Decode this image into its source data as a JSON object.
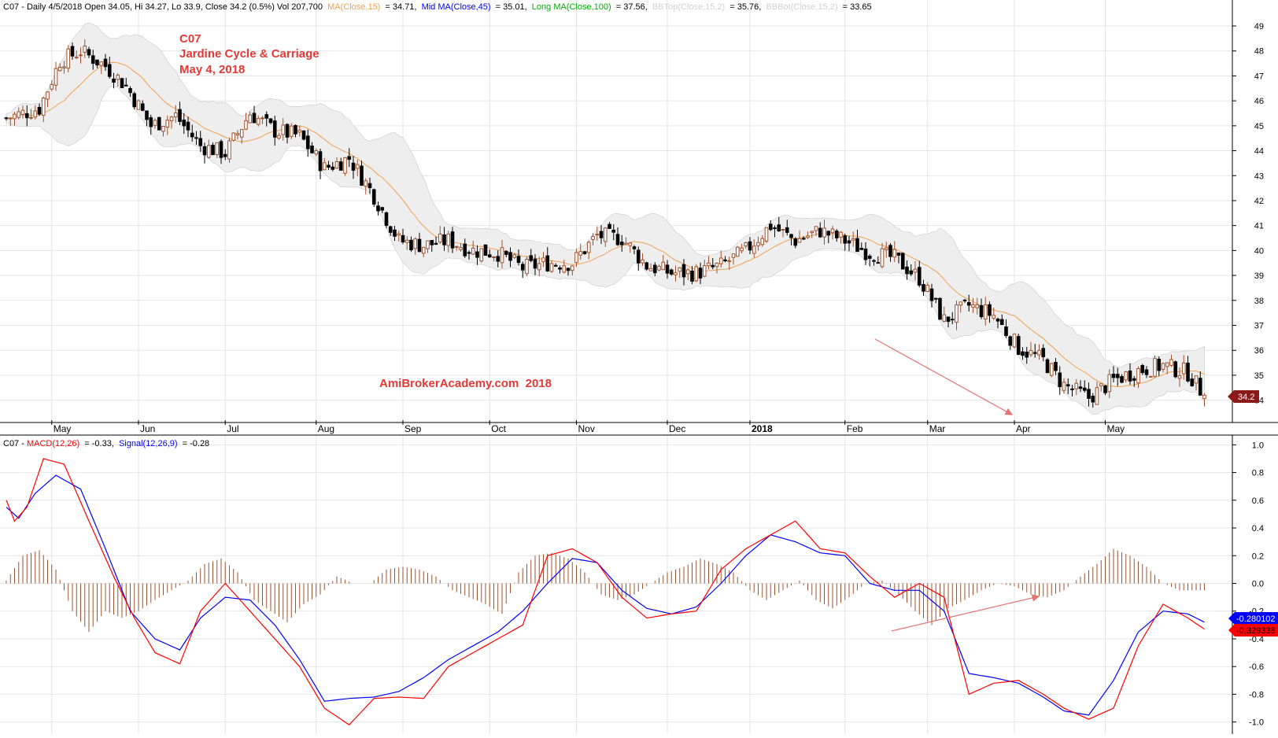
{
  "header": {
    "prefix": "C07 - Daily 4/5/2018 Open 34.05, Hi 34.27, Lo 33.9, Close 34.2 (0.5%) Vol 207,700",
    "ma15_label": "MA(Close,15)",
    "ma15_value": "= 34.71,",
    "mid_label": "Mid MA(Close,45)",
    "mid_value": "= 35.01,",
    "long_label": "Long MA(Close,100)",
    "long_value": "= 37.56,",
    "bbtop_label": "BBTop(Close,15,2)",
    "bbtop_value": "= 35.76,",
    "bbbot_label": "BBBot(Close,15,2)",
    "bbbot_value": "= 33.65"
  },
  "annotation": {
    "line1": "C07",
    "line2": "Jardine Cycle & Carriage",
    "line3": "May 4, 2018",
    "watermark": "AmiBrokerAcademy.com  2018"
  },
  "price_tag": "34.2",
  "macd_header": {
    "prefix": "C07 - ",
    "macd_label": "MACD(12,26)",
    "macd_value": "= -0.33,",
    "signal_label": "Signal(12,26,9)",
    "signal_value": "= -0.28"
  },
  "macd_tags": {
    "signal": "-0.280102",
    "macd": "-0.329338"
  },
  "colors": {
    "up": "#a0522d",
    "down": "#000000",
    "ma15": "#f0a050",
    "band": "#eeeeee",
    "macd": "#ff0000",
    "signal": "#0000ff",
    "hist": "#a0522d",
    "annotation": "#e53935",
    "arrow": "#e57373"
  },
  "chart_data": [
    {
      "type": "candlestick",
      "title": "C07 Jardine Cycle & Carriage daily",
      "y_ticks": [
        34,
        35,
        36,
        37,
        38,
        39,
        40,
        41,
        42,
        43,
        44,
        45,
        46,
        47,
        48,
        49
      ],
      "ylim": [
        33.2,
        49.6
      ],
      "x_labels": [
        {
          "label": "May",
          "bold": false
        },
        {
          "label": "Jun",
          "bold": false
        },
        {
          "label": "Jul",
          "bold": false
        },
        {
          "label": "Aug",
          "bold": false
        },
        {
          "label": "Sep",
          "bold": false
        },
        {
          "label": "Oct",
          "bold": false
        },
        {
          "label": "Nov",
          "bold": false
        },
        {
          "label": "Dec",
          "bold": false
        },
        {
          "label": "2018",
          "bold": true
        },
        {
          "label": "Feb",
          "bold": false
        },
        {
          "label": "Mar",
          "bold": false
        },
        {
          "label": "Apr",
          "bold": false
        },
        {
          "label": "May",
          "bold": false
        }
      ],
      "close_path": [
        [
          0,
          45.3
        ],
        [
          8,
          45.7
        ],
        [
          13,
          47.6
        ],
        [
          18,
          48.0
        ],
        [
          24,
          47.4
        ],
        [
          29,
          46.6
        ],
        [
          35,
          45.0
        ],
        [
          41,
          45.4
        ],
        [
          47,
          44.2
        ],
        [
          53,
          43.9
        ],
        [
          59,
          45.5
        ],
        [
          65,
          44.8
        ],
        [
          71,
          44.6
        ],
        [
          77,
          43.3
        ],
        [
          83,
          43.7
        ],
        [
          89,
          42.2
        ],
        [
          95,
          40.4
        ],
        [
          101,
          40.2
        ],
        [
          107,
          40.4
        ],
        [
          113,
          40.0
        ],
        [
          119,
          39.9
        ],
        [
          125,
          39.3
        ],
        [
          131,
          39.5
        ],
        [
          137,
          39.5
        ],
        [
          143,
          40.6
        ],
        [
          149,
          40.5
        ],
        [
          155,
          39.4
        ],
        [
          161,
          39.1
        ],
        [
          167,
          39.1
        ],
        [
          173,
          39.4
        ],
        [
          179,
          40.0
        ],
        [
          185,
          41.0
        ],
        [
          191,
          40.4
        ],
        [
          197,
          40.8
        ],
        [
          203,
          40.4
        ],
        [
          209,
          39.9
        ],
        [
          215,
          39.7
        ],
        [
          221,
          38.9
        ],
        [
          227,
          37.2
        ],
        [
          233,
          37.8
        ],
        [
          239,
          37.4
        ],
        [
          245,
          36.1
        ],
        [
          251,
          35.6
        ],
        [
          256,
          34.6
        ],
        [
          262,
          34.1
        ],
        [
          268,
          34.8
        ],
        [
          274,
          35.2
        ],
        [
          280,
          35.4
        ],
        [
          286,
          35.1
        ],
        [
          290,
          34.2
        ]
      ],
      "last_close": 34.2
    },
    {
      "type": "line",
      "title": "MACD(12,26) / Signal(12,26,9)",
      "y_ticks": [
        1.0,
        0.8,
        0.6,
        0.4,
        0.2,
        0.0,
        -0.2,
        -0.4,
        -0.6,
        -0.8,
        -1.0
      ],
      "ylim": [
        -1.07,
        1.07
      ],
      "series": [
        {
          "name": "MACD(12,26)",
          "points": [
            [
              0,
              0.6
            ],
            [
              2,
              0.45
            ],
            [
              5,
              0.55
            ],
            [
              9,
              0.9
            ],
            [
              14,
              0.86
            ],
            [
              20,
              0.45
            ],
            [
              26,
              0.05
            ],
            [
              31,
              -0.25
            ],
            [
              36,
              -0.5
            ],
            [
              42,
              -0.58
            ],
            [
              47,
              -0.2
            ],
            [
              53,
              0.0
            ],
            [
              59,
              -0.2
            ],
            [
              65,
              -0.4
            ],
            [
              71,
              -0.6
            ],
            [
              77,
              -0.9
            ],
            [
              83,
              -1.02
            ],
            [
              89,
              -0.83
            ],
            [
              95,
              -0.82
            ],
            [
              101,
              -0.83
            ],
            [
              107,
              -0.6
            ],
            [
              113,
              -0.5
            ],
            [
              119,
              -0.4
            ],
            [
              125,
              -0.3
            ],
            [
              131,
              0.2
            ],
            [
              137,
              0.25
            ],
            [
              143,
              0.15
            ],
            [
              149,
              -0.1
            ],
            [
              155,
              -0.25
            ],
            [
              161,
              -0.22
            ],
            [
              167,
              -0.2
            ],
            [
              173,
              0.1
            ],
            [
              179,
              0.25
            ],
            [
              185,
              0.35
            ],
            [
              191,
              0.45
            ],
            [
              197,
              0.25
            ],
            [
              203,
              0.22
            ],
            [
              209,
              0.05
            ],
            [
              215,
              -0.1
            ],
            [
              221,
              0.0
            ],
            [
              227,
              -0.1
            ],
            [
              233,
              -0.8
            ],
            [
              239,
              -0.72
            ],
            [
              245,
              -0.7
            ],
            [
              251,
              -0.8
            ],
            [
              256,
              -0.9
            ],
            [
              262,
              -0.98
            ],
            [
              268,
              -0.9
            ],
            [
              274,
              -0.45
            ],
            [
              280,
              -0.15
            ],
            [
              286,
              -0.25
            ],
            [
              290,
              -0.33
            ]
          ]
        },
        {
          "name": "Signal(12,26,9)",
          "points": [
            [
              0,
              0.55
            ],
            [
              3,
              0.47
            ],
            [
              7,
              0.65
            ],
            [
              12,
              0.78
            ],
            [
              18,
              0.68
            ],
            [
              24,
              0.25
            ],
            [
              30,
              -0.2
            ],
            [
              36,
              -0.4
            ],
            [
              42,
              -0.48
            ],
            [
              47,
              -0.25
            ],
            [
              53,
              -0.1
            ],
            [
              59,
              -0.12
            ],
            [
              65,
              -0.3
            ],
            [
              71,
              -0.55
            ],
            [
              77,
              -0.85
            ],
            [
              83,
              -0.83
            ],
            [
              89,
              -0.82
            ],
            [
              95,
              -0.78
            ],
            [
              101,
              -0.68
            ],
            [
              107,
              -0.55
            ],
            [
              113,
              -0.45
            ],
            [
              119,
              -0.35
            ],
            [
              125,
              -0.2
            ],
            [
              131,
              0.0
            ],
            [
              137,
              0.18
            ],
            [
              143,
              0.15
            ],
            [
              149,
              -0.05
            ],
            [
              155,
              -0.18
            ],
            [
              161,
              -0.22
            ],
            [
              167,
              -0.17
            ],
            [
              173,
              0.0
            ],
            [
              179,
              0.2
            ],
            [
              185,
              0.35
            ],
            [
              191,
              0.3
            ],
            [
              197,
              0.22
            ],
            [
              203,
              0.2
            ],
            [
              209,
              0.0
            ],
            [
              215,
              -0.05
            ],
            [
              221,
              -0.05
            ],
            [
              227,
              -0.2
            ],
            [
              233,
              -0.65
            ],
            [
              239,
              -0.68
            ],
            [
              245,
              -0.72
            ],
            [
              251,
              -0.82
            ],
            [
              256,
              -0.92
            ],
            [
              262,
              -0.95
            ],
            [
              268,
              -0.7
            ],
            [
              274,
              -0.35
            ],
            [
              280,
              -0.2
            ],
            [
              286,
              -0.22
            ],
            [
              290,
              -0.28
            ]
          ]
        }
      ],
      "histogram_envelope": [
        [
          0,
          0.02
        ],
        [
          4,
          0.2
        ],
        [
          8,
          0.24
        ],
        [
          12,
          0.1
        ],
        [
          16,
          -0.2
        ],
        [
          20,
          -0.35
        ],
        [
          24,
          -0.2
        ],
        [
          28,
          -0.25
        ],
        [
          32,
          -0.2
        ],
        [
          36,
          -0.12
        ],
        [
          40,
          -0.05
        ],
        [
          44,
          0.02
        ],
        [
          48,
          0.14
        ],
        [
          52,
          0.18
        ],
        [
          56,
          0.08
        ],
        [
          60,
          -0.12
        ],
        [
          64,
          -0.2
        ],
        [
          68,
          -0.28
        ],
        [
          72,
          -0.15
        ],
        [
          76,
          -0.08
        ],
        [
          80,
          0.05
        ],
        [
          84,
          0.0
        ],
        [
          88,
          0.0
        ],
        [
          92,
          0.1
        ],
        [
          96,
          0.12
        ],
        [
          100,
          0.1
        ],
        [
          104,
          0.05
        ],
        [
          108,
          -0.05
        ],
        [
          112,
          -0.1
        ],
        [
          116,
          -0.15
        ],
        [
          120,
          -0.22
        ],
        [
          124,
          0.08
        ],
        [
          128,
          0.2
        ],
        [
          132,
          0.22
        ],
        [
          136,
          0.18
        ],
        [
          140,
          0.08
        ],
        [
          144,
          -0.08
        ],
        [
          148,
          -0.12
        ],
        [
          152,
          -0.08
        ],
        [
          156,
          0.0
        ],
        [
          160,
          0.08
        ],
        [
          164,
          0.12
        ],
        [
          168,
          0.18
        ],
        [
          172,
          0.14
        ],
        [
          176,
          0.08
        ],
        [
          180,
          -0.05
        ],
        [
          184,
          -0.12
        ],
        [
          188,
          -0.05
        ],
        [
          192,
          0.02
        ],
        [
          196,
          -0.12
        ],
        [
          200,
          -0.18
        ],
        [
          204,
          -0.1
        ],
        [
          208,
          0.0
        ],
        [
          212,
          0.02
        ],
        [
          216,
          -0.08
        ],
        [
          220,
          -0.2
        ],
        [
          224,
          -0.3
        ],
        [
          228,
          -0.18
        ],
        [
          232,
          -0.12
        ],
        [
          236,
          -0.05
        ],
        [
          240,
          0.0
        ],
        [
          244,
          -0.02
        ],
        [
          248,
          -0.08
        ],
        [
          252,
          -0.1
        ],
        [
          256,
          -0.05
        ],
        [
          260,
          0.05
        ],
        [
          264,
          0.14
        ],
        [
          268,
          0.25
        ],
        [
          272,
          0.2
        ],
        [
          276,
          0.12
        ],
        [
          280,
          0.0
        ],
        [
          284,
          -0.05
        ],
        [
          288,
          -0.05
        ],
        [
          290,
          -0.05
        ]
      ]
    }
  ]
}
